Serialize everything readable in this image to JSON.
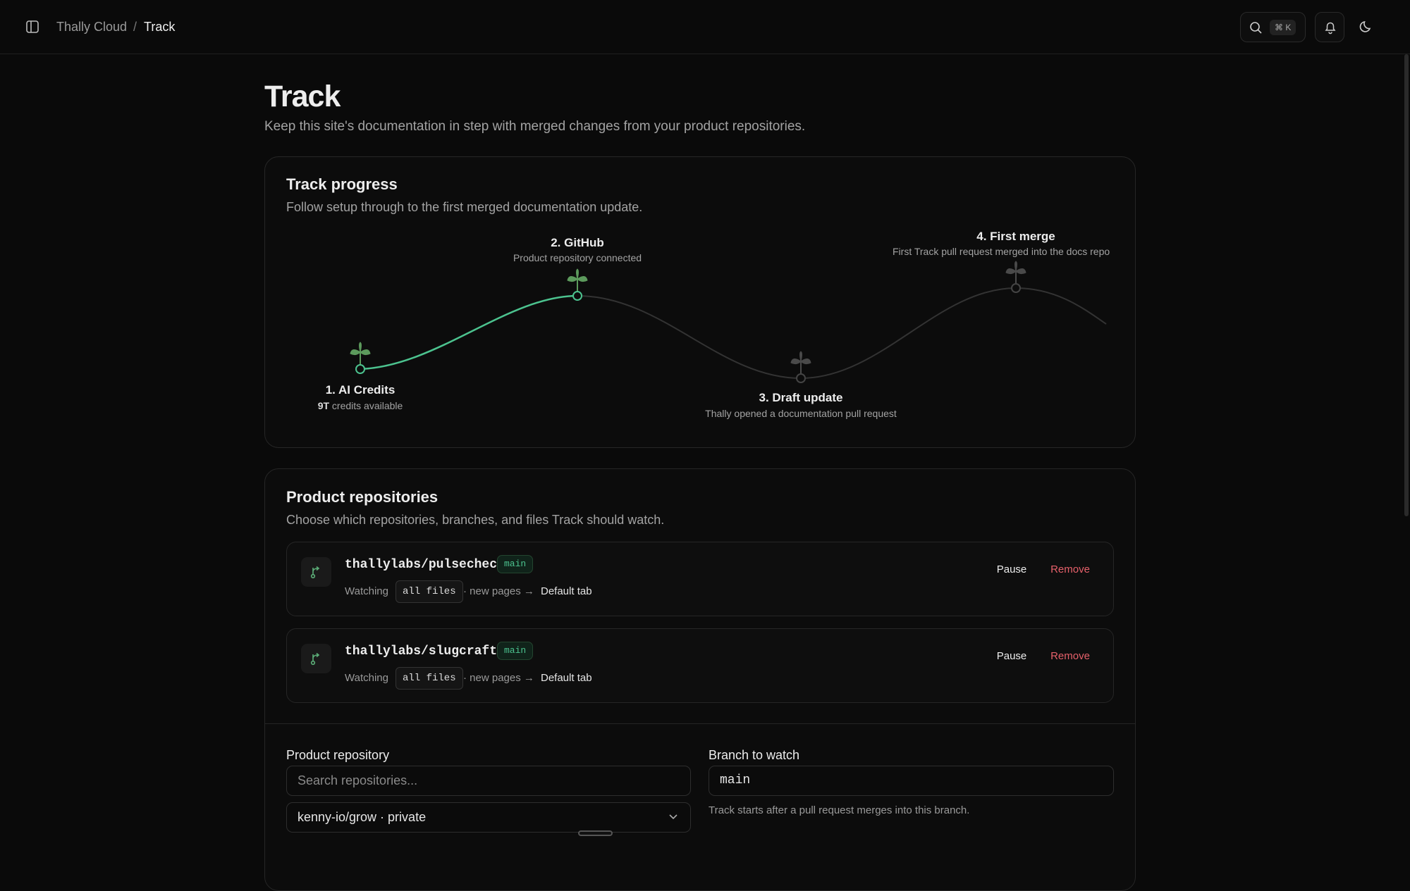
{
  "header": {
    "breadcrumb": {
      "parent": "Thally Cloud",
      "separator": "/",
      "current": "Track"
    },
    "search_shortcut": "⌘ K"
  },
  "page": {
    "title": "Track",
    "subtitle": "Keep this site's documentation in step with merged changes from your product repositories."
  },
  "progress": {
    "title": "Track progress",
    "description": "Follow setup through to the first merged documentation update.",
    "milestones": [
      {
        "label": "1. AI Credits",
        "detail_strong": "9T",
        "detail": "credits available"
      },
      {
        "label": "2. GitHub",
        "detail": "Product repository connected"
      },
      {
        "label": "3. Draft update",
        "detail": "Thally opened a documentation pull request"
      },
      {
        "label": "4. First merge",
        "detail": "First Track pull request merged into the docs repo"
      }
    ]
  },
  "repositories": {
    "title": "Product repositories",
    "description": "Choose which repositories, branches, and files Track should watch.",
    "items": [
      {
        "name": "thallylabs/pulsecheck",
        "branch": "main",
        "watching": "Watching",
        "scope": "all files",
        "target_prefix": "· new pages →",
        "target": "Default tab",
        "pause": "Pause",
        "remove": "Remove"
      },
      {
        "name": "thallylabs/slugcraft",
        "branch": "main",
        "watching": "Watching",
        "scope": "all files",
        "target_prefix": "· new pages →",
        "target": "Default tab",
        "pause": "Pause",
        "remove": "Remove"
      }
    ]
  },
  "form": {
    "repo_label": "Product repository",
    "repo_placeholder": "Search repositories...",
    "repo_selected": "kenny-io/grow · private",
    "branch_label": "Branch to watch",
    "branch_value": "main",
    "branch_help": "Track starts after a pull request merges into this branch."
  }
}
